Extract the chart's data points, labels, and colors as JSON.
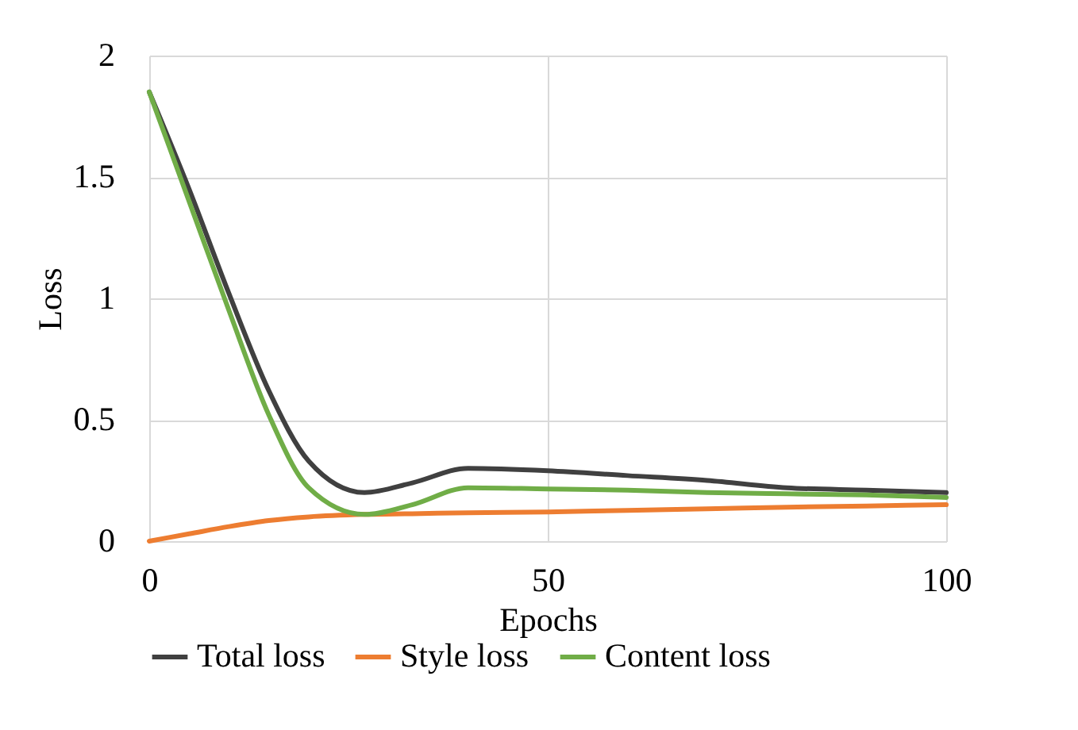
{
  "chart_data": {
    "type": "line",
    "xlabel": "Epochs",
    "ylabel": "Loss",
    "x": [
      0,
      5,
      10,
      15,
      20,
      27,
      33,
      40,
      50,
      60,
      70,
      80,
      90,
      100
    ],
    "series": [
      {
        "name": "Total loss",
        "color": "#404040",
        "values": [
          1.85,
          1.45,
          1.02,
          0.62,
          0.33,
          0.2,
          0.24,
          0.3,
          0.29,
          0.27,
          0.25,
          0.22,
          0.21,
          0.2
        ]
      },
      {
        "name": "Style loss",
        "color": "#ed7d31",
        "values": [
          0,
          0.03,
          0.06,
          0.085,
          0.1,
          0.11,
          0.113,
          0.117,
          0.12,
          0.127,
          0.133,
          0.14,
          0.145,
          0.15
        ]
      },
      {
        "name": "Content loss",
        "color": "#70ad47",
        "values": [
          1.85,
          1.4,
          0.95,
          0.52,
          0.22,
          0.11,
          0.15,
          0.22,
          0.215,
          0.21,
          0.2,
          0.195,
          0.19,
          0.18
        ]
      }
    ],
    "xlim": [
      0,
      100
    ],
    "xticks": [
      0,
      50,
      100
    ],
    "ylim": [
      0,
      2
    ],
    "yticks": [
      0,
      0.5,
      1,
      1.5,
      2
    ],
    "grid": true,
    "legend": "bottom",
    "marker": "none",
    "line_style": "solid"
  }
}
